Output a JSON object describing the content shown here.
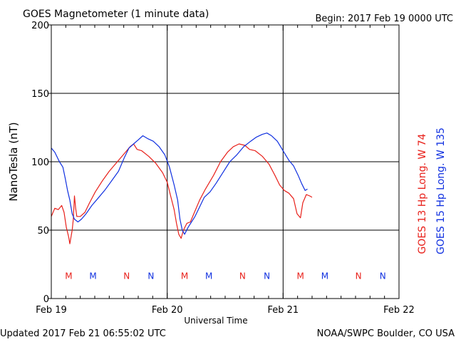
{
  "header": {
    "title": "GOES Magnetometer (1 minute data)",
    "begin": "Begin:  2017 Feb 19 0000 UTC"
  },
  "footer": {
    "updated": "Updated 2017 Feb 21 06:55:02 UTC",
    "credit": "NOAA/SWPC Boulder, CO USA"
  },
  "colors": {
    "goes13": "#e8201a",
    "goes15": "#1030e0",
    "frame": "#000000"
  },
  "chart_data": {
    "type": "line",
    "title": "GOES Magnetometer (1 minute data)",
    "xlabel": "Universal Time",
    "ylabel": "NanoTesla (nT)",
    "ylim": [
      0,
      200
    ],
    "yticks": [
      0,
      50,
      100,
      150,
      200
    ],
    "xlim": [
      0,
      3
    ],
    "x_unit": "days since 2017 Feb 19 0000 UTC",
    "xticks": [
      {
        "x": 0,
        "label": "Feb 19"
      },
      {
        "x": 1,
        "label": "Feb 20"
      },
      {
        "x": 2,
        "label": "Feb 21"
      },
      {
        "x": 3,
        "label": "Feb 22"
      }
    ],
    "grid": true,
    "legend_position": "right (vertical)",
    "series": [
      {
        "name": "GOES 13 Hp  Long. W 74",
        "color": "#e8201a",
        "points": [
          [
            0.0,
            60
          ],
          [
            0.03,
            66
          ],
          [
            0.06,
            65
          ],
          [
            0.09,
            68
          ],
          [
            0.11,
            63
          ],
          [
            0.13,
            52
          ],
          [
            0.15,
            45
          ],
          [
            0.16,
            40
          ],
          [
            0.18,
            50
          ],
          [
            0.19,
            58
          ],
          [
            0.2,
            75
          ],
          [
            0.21,
            66
          ],
          [
            0.22,
            60
          ],
          [
            0.25,
            60
          ],
          [
            0.29,
            63
          ],
          [
            0.33,
            70
          ],
          [
            0.38,
            78
          ],
          [
            0.44,
            86
          ],
          [
            0.5,
            93
          ],
          [
            0.56,
            99
          ],
          [
            0.6,
            103
          ],
          [
            0.64,
            107
          ],
          [
            0.68,
            111
          ],
          [
            0.71,
            113
          ],
          [
            0.74,
            109
          ],
          [
            0.78,
            108
          ],
          [
            0.84,
            104
          ],
          [
            0.9,
            99
          ],
          [
            0.96,
            92
          ],
          [
            1.0,
            85
          ],
          [
            1.03,
            75
          ],
          [
            1.06,
            65
          ],
          [
            1.08,
            55
          ],
          [
            1.1,
            47
          ],
          [
            1.12,
            44
          ],
          [
            1.14,
            50
          ],
          [
            1.17,
            55
          ],
          [
            1.2,
            56
          ],
          [
            1.24,
            64
          ],
          [
            1.28,
            72
          ],
          [
            1.33,
            80
          ],
          [
            1.4,
            90
          ],
          [
            1.46,
            100
          ],
          [
            1.52,
            107
          ],
          [
            1.57,
            111
          ],
          [
            1.62,
            113
          ],
          [
            1.67,
            112
          ],
          [
            1.71,
            109
          ],
          [
            1.76,
            108
          ],
          [
            1.82,
            104
          ],
          [
            1.88,
            98
          ],
          [
            1.93,
            90
          ],
          [
            1.97,
            83
          ],
          [
            2.01,
            79
          ],
          [
            2.05,
            77
          ],
          [
            2.09,
            73
          ],
          [
            2.12,
            62
          ],
          [
            2.15,
            59
          ],
          [
            2.17,
            70
          ],
          [
            2.2,
            76
          ],
          [
            2.23,
            75
          ],
          [
            2.25,
            74
          ]
        ]
      },
      {
        "name": "GOES 15 Hp  Long. W 135",
        "color": "#1030e0",
        "points": [
          [
            0.0,
            110
          ],
          [
            0.03,
            107
          ],
          [
            0.07,
            100
          ],
          [
            0.1,
            96
          ],
          [
            0.12,
            88
          ],
          [
            0.14,
            79
          ],
          [
            0.16,
            72
          ],
          [
            0.18,
            62
          ],
          [
            0.2,
            58
          ],
          [
            0.23,
            56
          ],
          [
            0.26,
            58
          ],
          [
            0.3,
            62
          ],
          [
            0.35,
            68
          ],
          [
            0.4,
            73
          ],
          [
            0.46,
            79
          ],
          [
            0.52,
            86
          ],
          [
            0.58,
            93
          ],
          [
            0.63,
            103
          ],
          [
            0.67,
            110
          ],
          [
            0.71,
            113
          ],
          [
            0.75,
            116
          ],
          [
            0.79,
            119
          ],
          [
            0.83,
            117
          ],
          [
            0.88,
            115
          ],
          [
            0.93,
            111
          ],
          [
            0.98,
            105
          ],
          [
            1.02,
            96
          ],
          [
            1.06,
            83
          ],
          [
            1.09,
            72
          ],
          [
            1.11,
            58
          ],
          [
            1.13,
            50
          ],
          [
            1.15,
            47
          ],
          [
            1.18,
            52
          ],
          [
            1.21,
            56
          ],
          [
            1.24,
            60
          ],
          [
            1.28,
            67
          ],
          [
            1.32,
            74
          ],
          [
            1.37,
            78
          ],
          [
            1.42,
            84
          ],
          [
            1.48,
            92
          ],
          [
            1.54,
            100
          ],
          [
            1.6,
            105
          ],
          [
            1.66,
            111
          ],
          [
            1.72,
            115
          ],
          [
            1.77,
            118
          ],
          [
            1.82,
            120
          ],
          [
            1.86,
            121
          ],
          [
            1.9,
            119
          ],
          [
            1.95,
            115
          ],
          [
            2.0,
            108
          ],
          [
            2.05,
            101
          ],
          [
            2.09,
            97
          ],
          [
            2.13,
            90
          ],
          [
            2.16,
            84
          ],
          [
            2.19,
            79
          ],
          [
            2.21,
            80
          ]
        ]
      }
    ],
    "markers": [
      {
        "x": 0.15,
        "label": "M",
        "series": "GOES 13 Hp  Long. W 74"
      },
      {
        "x": 0.36,
        "label": "M",
        "series": "GOES 15 Hp  Long. W 135"
      },
      {
        "x": 0.65,
        "label": "N",
        "series": "GOES 13 Hp  Long. W 74"
      },
      {
        "x": 0.86,
        "label": "N",
        "series": "GOES 15 Hp  Long. W 135"
      },
      {
        "x": 1.15,
        "label": "M",
        "series": "GOES 13 Hp  Long. W 74"
      },
      {
        "x": 1.36,
        "label": "M",
        "series": "GOES 15 Hp  Long. W 135"
      },
      {
        "x": 1.65,
        "label": "N",
        "series": "GOES 13 Hp  Long. W 74"
      },
      {
        "x": 1.86,
        "label": "N",
        "series": "GOES 15 Hp  Long. W 135"
      },
      {
        "x": 2.15,
        "label": "M",
        "series": "GOES 13 Hp  Long. W 74"
      },
      {
        "x": 2.36,
        "label": "M",
        "series": "GOES 15 Hp  Long. W 135"
      },
      {
        "x": 2.65,
        "label": "N",
        "series": "GOES 13 Hp  Long. W 74"
      },
      {
        "x": 2.86,
        "label": "N",
        "series": "GOES 15 Hp  Long. W 135"
      }
    ],
    "marker_level": 17
  }
}
